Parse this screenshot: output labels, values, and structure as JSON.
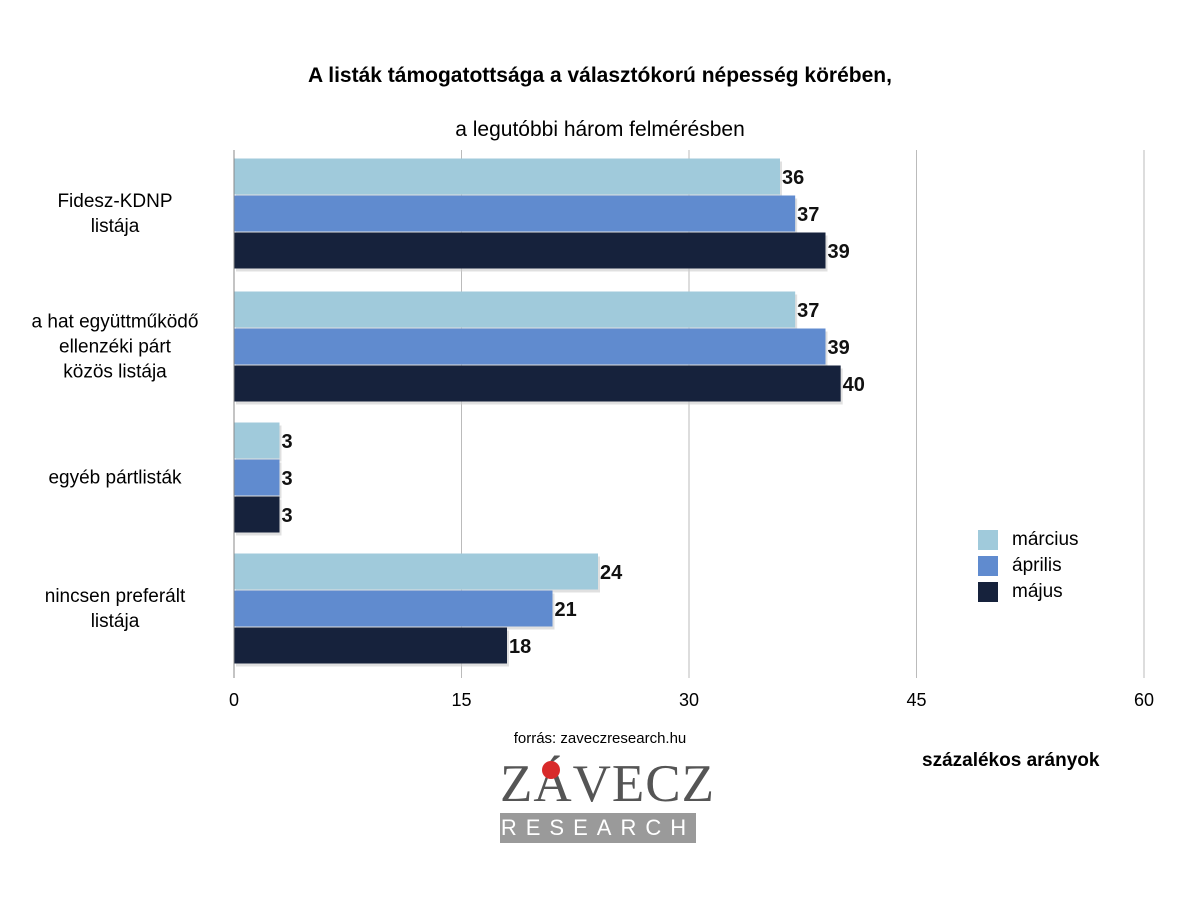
{
  "chart_data": {
    "type": "bar",
    "orientation": "horizontal",
    "title": "A listák támogatottsága a választókorú népesség körében,",
    "subtitle": "a legutóbbi három felmérésben",
    "categories": [
      [
        "Fidesz-KDNP",
        "listája"
      ],
      [
        "a hat együttműködő",
        "ellenzéki párt",
        "közös listája"
      ],
      [
        "egyéb pártlisták"
      ],
      [
        "nincsen preferált",
        "listája"
      ]
    ],
    "series": [
      {
        "name": "március",
        "color": "#a0cadb",
        "values": [
          36,
          37,
          3,
          24
        ]
      },
      {
        "name": "április",
        "color": "#608bcf",
        "values": [
          37,
          39,
          3,
          21
        ]
      },
      {
        "name": "május",
        "color": "#16223c",
        "values": [
          39,
          40,
          3,
          18
        ]
      }
    ],
    "xlim": [
      0,
      60
    ],
    "xticks": [
      "0",
      "15",
      "30",
      "45",
      "60"
    ],
    "xlabel": "százalékos arányok",
    "grid": true,
    "legend": "right"
  },
  "source": "forrás: zaveczresearch.hu",
  "logo": {
    "top": "ZÁVECZ",
    "bottom": "RESEARCH"
  }
}
